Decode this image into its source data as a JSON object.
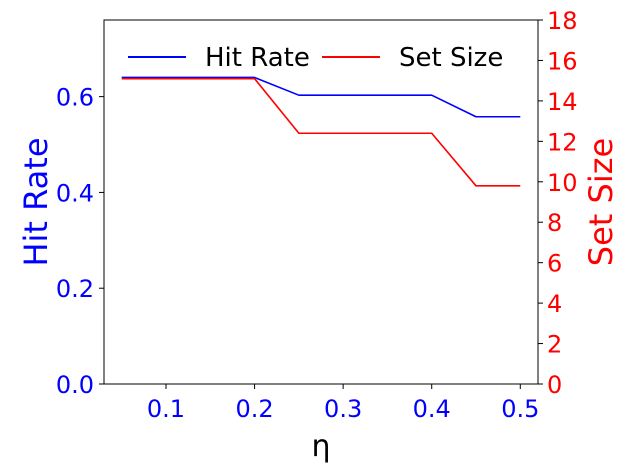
{
  "chart_data": {
    "type": "line",
    "x": [
      0.05,
      0.1,
      0.15,
      0.2,
      0.25,
      0.3,
      0.35,
      0.4,
      0.45,
      0.5
    ],
    "xlabel": "η",
    "xlim": [
      0.03,
      0.52
    ],
    "xticks": [
      0.1,
      0.2,
      0.3,
      0.4,
      0.5
    ],
    "xtick_labels": [
      "0.1",
      "0.2",
      "0.3",
      "0.4",
      "0.5"
    ],
    "grid": false,
    "legend_position": "top",
    "y_left": {
      "label": "Hit Rate",
      "color": "#0000ff",
      "lim": [
        0.0,
        0.76
      ],
      "ticks": [
        0.0,
        0.2,
        0.4,
        0.6
      ],
      "tick_labels": [
        "0.0",
        "0.2",
        "0.4",
        "0.6"
      ]
    },
    "y_right": {
      "label": "Set Size",
      "color": "#ff0000",
      "lim": [
        0,
        18
      ],
      "ticks": [
        0,
        2,
        4,
        6,
        8,
        10,
        12,
        14,
        16,
        18
      ],
      "tick_labels": [
        "0",
        "2",
        "4",
        "6",
        "8",
        "10",
        "12",
        "14",
        "16",
        "18"
      ]
    },
    "series": [
      {
        "name": "Hit Rate",
        "axis": "left",
        "color": "#0000ff",
        "values": [
          0.64,
          0.64,
          0.64,
          0.64,
          0.603,
          0.603,
          0.603,
          0.603,
          0.558,
          0.558
        ]
      },
      {
        "name": "Set Size",
        "axis": "right",
        "color": "#ff0000",
        "values": [
          15.1,
          15.1,
          15.1,
          15.1,
          12.4,
          12.4,
          12.4,
          12.4,
          9.8,
          9.8
        ]
      }
    ]
  }
}
